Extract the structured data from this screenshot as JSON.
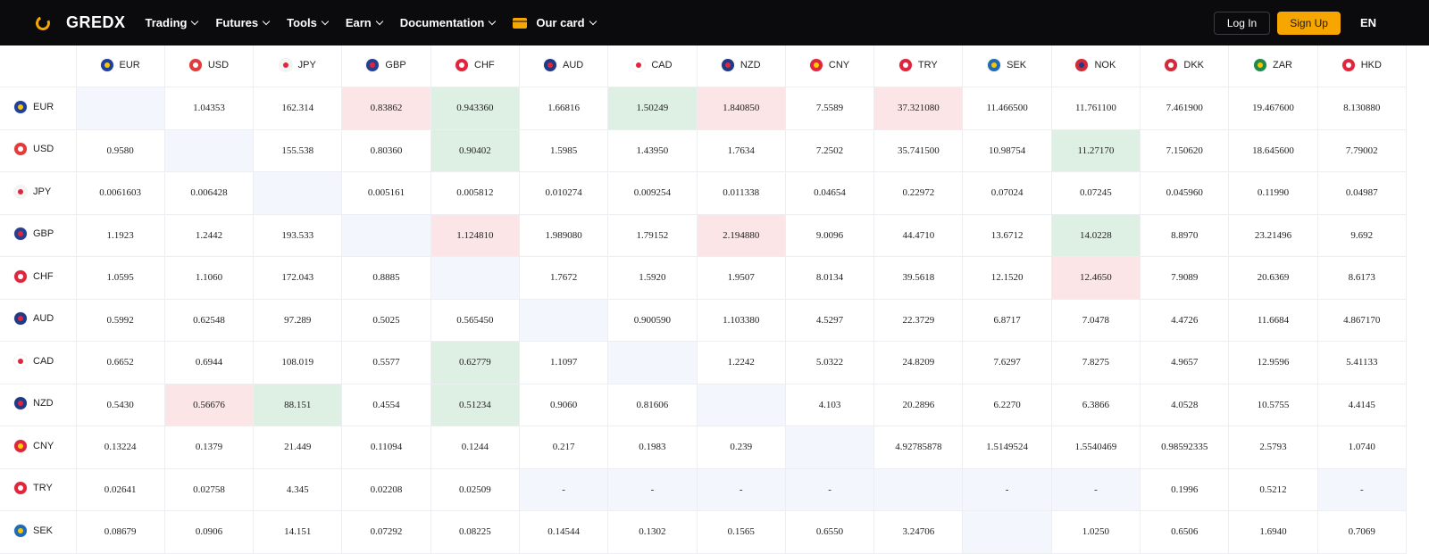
{
  "brand": {
    "name": "GREDX",
    "accent": "#f7a600"
  },
  "nav": [
    {
      "label": "Trading",
      "name": "nav-trading"
    },
    {
      "label": "Futures",
      "name": "nav-futures"
    },
    {
      "label": "Tools",
      "name": "nav-tools"
    },
    {
      "label": "Earn",
      "name": "nav-earn"
    },
    {
      "label": "Documentation",
      "name": "nav-documentation"
    },
    {
      "label": "Our card",
      "name": "nav-our-card",
      "icon": "card-icon"
    }
  ],
  "auth": {
    "login": "Log In",
    "signup": "Sign Up",
    "lang": "EN"
  },
  "currencies": [
    "EUR",
    "USD",
    "JPY",
    "GBP",
    "CHF",
    "AUD",
    "CAD",
    "NZD",
    "CNY",
    "TRY",
    "SEK",
    "NOK",
    "DKK",
    "ZAR",
    "HKD"
  ],
  "flags": {
    "EUR": {
      "bg": "#1f3f9c",
      "fg": "#f7c600",
      "icon": "eu-flag-icon"
    },
    "USD": {
      "bg": "#e23b3b",
      "fg": "#ffffff",
      "icon": "us-flag-icon"
    },
    "JPY": {
      "bg": "#f4f4f4",
      "fg": "#e0253c",
      "icon": "jp-flag-icon"
    },
    "GBP": {
      "bg": "#26408f",
      "fg": "#e0253c",
      "icon": "gb-flag-icon"
    },
    "CHF": {
      "bg": "#e0253c",
      "fg": "#ffffff",
      "icon": "ch-flag-icon"
    },
    "AUD": {
      "bg": "#1f3a86",
      "fg": "#e0253c",
      "icon": "au-flag-icon"
    },
    "CAD": {
      "bg": "#ffffff",
      "fg": "#e0253c",
      "icon": "ca-flag-icon"
    },
    "NZD": {
      "bg": "#1f3a86",
      "fg": "#e0253c",
      "icon": "nz-flag-icon"
    },
    "CNY": {
      "bg": "#e0253c",
      "fg": "#f7d000",
      "icon": "cn-flag-icon"
    },
    "TRY": {
      "bg": "#e0253c",
      "fg": "#ffffff",
      "icon": "tr-flag-icon"
    },
    "SEK": {
      "bg": "#1f6bb8",
      "fg": "#f7c600",
      "icon": "se-flag-icon"
    },
    "NOK": {
      "bg": "#d32a3a",
      "fg": "#1f3a86",
      "icon": "no-flag-icon"
    },
    "DKK": {
      "bg": "#d32a3a",
      "fg": "#ffffff",
      "icon": "dk-flag-icon"
    },
    "ZAR": {
      "bg": "#1f8a4c",
      "fg": "#f7c600",
      "icon": "za-flag-icon"
    },
    "HKD": {
      "bg": "#e0253c",
      "fg": "#ffffff",
      "icon": "hk-flag-icon"
    }
  },
  "colors": {
    "green": "#ddf0e3",
    "red": "#fbe5e6",
    "blue": "#f3f6fd"
  },
  "rows": [
    {
      "code": "EUR",
      "cells": [
        {
          "v": "",
          "s": "blue"
        },
        {
          "v": "1.04353"
        },
        {
          "v": "162.314"
        },
        {
          "v": "0.83862",
          "s": "red"
        },
        {
          "v": "0.943360",
          "s": "green"
        },
        {
          "v": "1.66816"
        },
        {
          "v": "1.50249",
          "s": "green"
        },
        {
          "v": "1.840850",
          "s": "red"
        },
        {
          "v": "7.5589"
        },
        {
          "v": "37.321080",
          "s": "red"
        },
        {
          "v": "11.466500"
        },
        {
          "v": "11.761100"
        },
        {
          "v": "7.461900"
        },
        {
          "v": "19.467600"
        },
        {
          "v": "8.130880"
        }
      ]
    },
    {
      "code": "USD",
      "cells": [
        {
          "v": "0.9580"
        },
        {
          "v": "",
          "s": "blue"
        },
        {
          "v": "155.538"
        },
        {
          "v": "0.80360"
        },
        {
          "v": "0.90402",
          "s": "green"
        },
        {
          "v": "1.5985"
        },
        {
          "v": "1.43950"
        },
        {
          "v": "1.7634"
        },
        {
          "v": "7.2502"
        },
        {
          "v": "35.741500"
        },
        {
          "v": "10.98754"
        },
        {
          "v": "11.27170",
          "s": "green"
        },
        {
          "v": "7.150620"
        },
        {
          "v": "18.645600"
        },
        {
          "v": "7.79002"
        }
      ]
    },
    {
      "code": "JPY",
      "cells": [
        {
          "v": "0.0061603"
        },
        {
          "v": "0.006428"
        },
        {
          "v": "",
          "s": "blue"
        },
        {
          "v": "0.005161"
        },
        {
          "v": "0.005812"
        },
        {
          "v": "0.010274"
        },
        {
          "v": "0.009254"
        },
        {
          "v": "0.011338"
        },
        {
          "v": "0.04654"
        },
        {
          "v": "0.22972"
        },
        {
          "v": "0.07024"
        },
        {
          "v": "0.07245"
        },
        {
          "v": "0.045960"
        },
        {
          "v": "0.11990"
        },
        {
          "v": "0.04987"
        }
      ]
    },
    {
      "code": "GBP",
      "cells": [
        {
          "v": "1.1923"
        },
        {
          "v": "1.2442"
        },
        {
          "v": "193.533"
        },
        {
          "v": "",
          "s": "blue"
        },
        {
          "v": "1.124810",
          "s": "red"
        },
        {
          "v": "1.989080"
        },
        {
          "v": "1.79152"
        },
        {
          "v": "2.194880",
          "s": "red"
        },
        {
          "v": "9.0096"
        },
        {
          "v": "44.4710"
        },
        {
          "v": "13.6712"
        },
        {
          "v": "14.0228",
          "s": "green"
        },
        {
          "v": "8.8970"
        },
        {
          "v": "23.21496"
        },
        {
          "v": "9.692"
        }
      ]
    },
    {
      "code": "CHF",
      "cells": [
        {
          "v": "1.0595"
        },
        {
          "v": "1.1060"
        },
        {
          "v": "172.043"
        },
        {
          "v": "0.8885"
        },
        {
          "v": "",
          "s": "blue"
        },
        {
          "v": "1.7672"
        },
        {
          "v": "1.5920"
        },
        {
          "v": "1.9507"
        },
        {
          "v": "8.0134"
        },
        {
          "v": "39.5618"
        },
        {
          "v": "12.1520"
        },
        {
          "v": "12.4650",
          "s": "red"
        },
        {
          "v": "7.9089"
        },
        {
          "v": "20.6369"
        },
        {
          "v": "8.6173"
        }
      ]
    },
    {
      "code": "AUD",
      "cells": [
        {
          "v": "0.5992"
        },
        {
          "v": "0.62548"
        },
        {
          "v": "97.289"
        },
        {
          "v": "0.5025"
        },
        {
          "v": "0.565450"
        },
        {
          "v": "",
          "s": "blue"
        },
        {
          "v": "0.900590"
        },
        {
          "v": "1.103380"
        },
        {
          "v": "4.5297"
        },
        {
          "v": "22.3729"
        },
        {
          "v": "6.8717"
        },
        {
          "v": "7.0478"
        },
        {
          "v": "4.4726"
        },
        {
          "v": "11.6684"
        },
        {
          "v": "4.867170"
        }
      ]
    },
    {
      "code": "CAD",
      "cells": [
        {
          "v": "0.6652"
        },
        {
          "v": "0.6944"
        },
        {
          "v": "108.019"
        },
        {
          "v": "0.5577"
        },
        {
          "v": "0.62779",
          "s": "green"
        },
        {
          "v": "1.1097"
        },
        {
          "v": "",
          "s": "blue"
        },
        {
          "v": "1.2242"
        },
        {
          "v": "5.0322"
        },
        {
          "v": "24.8209"
        },
        {
          "v": "7.6297"
        },
        {
          "v": "7.8275"
        },
        {
          "v": "4.9657"
        },
        {
          "v": "12.9596"
        },
        {
          "v": "5.41133"
        }
      ]
    },
    {
      "code": "NZD",
      "cells": [
        {
          "v": "0.5430"
        },
        {
          "v": "0.56676",
          "s": "red"
        },
        {
          "v": "88.151",
          "s": "green"
        },
        {
          "v": "0.4554"
        },
        {
          "v": "0.51234",
          "s": "green"
        },
        {
          "v": "0.9060"
        },
        {
          "v": "0.81606"
        },
        {
          "v": "",
          "s": "blue"
        },
        {
          "v": "4.103"
        },
        {
          "v": "20.2896"
        },
        {
          "v": "6.2270"
        },
        {
          "v": "6.3866"
        },
        {
          "v": "4.0528"
        },
        {
          "v": "10.5755"
        },
        {
          "v": "4.4145"
        }
      ]
    },
    {
      "code": "CNY",
      "cells": [
        {
          "v": "0.13224"
        },
        {
          "v": "0.1379"
        },
        {
          "v": "21.449"
        },
        {
          "v": "0.11094"
        },
        {
          "v": "0.1244"
        },
        {
          "v": "0.217"
        },
        {
          "v": "0.1983"
        },
        {
          "v": "0.239"
        },
        {
          "v": "",
          "s": "blue"
        },
        {
          "v": "4.92785878"
        },
        {
          "v": "1.5149524"
        },
        {
          "v": "1.5540469"
        },
        {
          "v": "0.98592335"
        },
        {
          "v": "2.5793"
        },
        {
          "v": "1.0740"
        }
      ]
    },
    {
      "code": "TRY",
      "cells": [
        {
          "v": "0.02641"
        },
        {
          "v": "0.02758"
        },
        {
          "v": "4.345"
        },
        {
          "v": "0.02208"
        },
        {
          "v": "0.02509"
        },
        {
          "v": "-",
          "s": "blue"
        },
        {
          "v": "-",
          "s": "blue"
        },
        {
          "v": "-",
          "s": "blue"
        },
        {
          "v": "-",
          "s": "blue"
        },
        {
          "v": "",
          "s": "blue"
        },
        {
          "v": "-",
          "s": "blue"
        },
        {
          "v": "-",
          "s": "blue"
        },
        {
          "v": "0.1996"
        },
        {
          "v": "0.5212"
        },
        {
          "v": "-",
          "s": "blue"
        }
      ]
    },
    {
      "code": "SEK",
      "cells": [
        {
          "v": "0.08679"
        },
        {
          "v": "0.0906"
        },
        {
          "v": "14.151"
        },
        {
          "v": "0.07292"
        },
        {
          "v": "0.08225"
        },
        {
          "v": "0.14544"
        },
        {
          "v": "0.1302"
        },
        {
          "v": "0.1565"
        },
        {
          "v": "0.6550"
        },
        {
          "v": "3.24706"
        },
        {
          "v": "",
          "s": "blue"
        },
        {
          "v": "1.0250"
        },
        {
          "v": "0.6506"
        },
        {
          "v": "1.6940"
        },
        {
          "v": "0.7069"
        }
      ]
    }
  ]
}
